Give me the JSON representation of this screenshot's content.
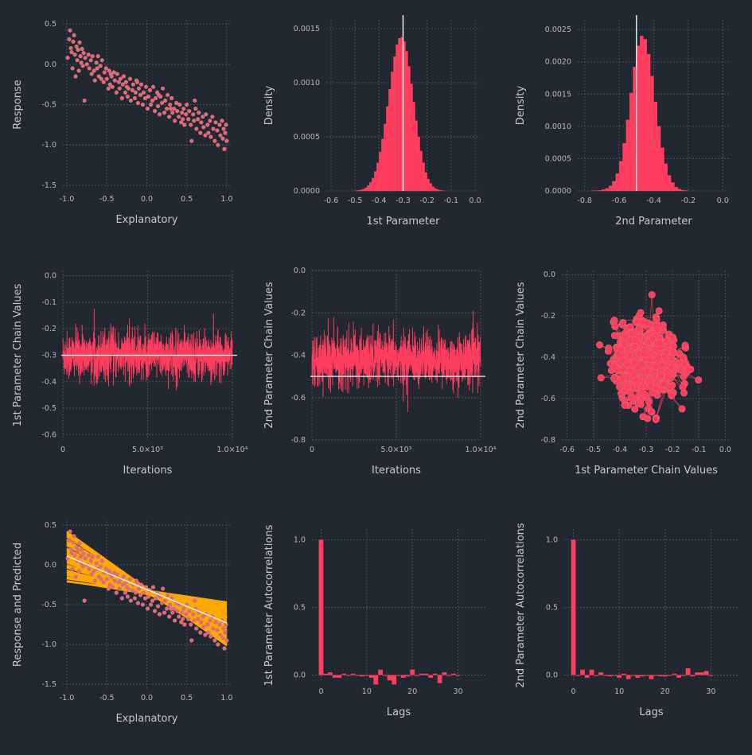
{
  "colors": {
    "background": "#222831",
    "pink": "#ff3d5f",
    "dots": "#d96d7a",
    "orange": "#ffa800",
    "white": "#f5f5f5",
    "grid": "#4a4f5a",
    "tick": "#b7b7b7",
    "label": "#c8c8c8"
  },
  "chart_data": [
    {
      "id": "p1",
      "type": "scatter",
      "xlabel": "Explanatory",
      "ylabel": "Response",
      "xlim": [
        -1.05,
        1.05
      ],
      "ylim": [
        -1.55,
        0.55
      ],
      "xticks": [
        -1.0,
        -0.5,
        0.0,
        0.5,
        1.0
      ],
      "xtick_labels": [
        "-1.0",
        "-0.5",
        "0.0",
        "0.5",
        "1.0"
      ],
      "yticks": [
        0.5,
        0.0,
        -0.5,
        -1.0,
        -1.5
      ],
      "ytick_labels": [
        "0.5",
        "0.0",
        "-0.5",
        "-1.0",
        "-1.5"
      ],
      "points": [
        [
          -0.99,
          0.08
        ],
        [
          -0.97,
          0.31
        ],
        [
          -0.96,
          0.42
        ],
        [
          -0.95,
          0.2
        ],
        [
          -0.94,
          0.15
        ],
        [
          -0.93,
          -0.05
        ],
        [
          -0.92,
          0.28
        ],
        [
          -0.91,
          0.36
        ],
        [
          -0.9,
          0.12
        ],
        [
          -0.89,
          -0.15
        ],
        [
          -0.88,
          0.22
        ],
        [
          -0.87,
          0.05
        ],
        [
          -0.86,
          0.18
        ],
        [
          -0.85,
          -0.08
        ],
        [
          -0.84,
          0.27
        ],
        [
          -0.83,
          0.1
        ],
        [
          -0.82,
          0.02
        ],
        [
          -0.81,
          0.19
        ],
        [
          -0.8,
          -0.02
        ],
        [
          -0.79,
          0.14
        ],
        [
          -0.78,
          -0.45
        ],
        [
          -0.77,
          0.08
        ],
        [
          -0.75,
          0.0
        ],
        [
          -0.73,
          0.12
        ],
        [
          -0.72,
          -0.05
        ],
        [
          -0.7,
          0.05
        ],
        [
          -0.69,
          -0.12
        ],
        [
          -0.68,
          0.1
        ],
        [
          -0.66,
          -0.08
        ],
        [
          -0.65,
          -0.2
        ],
        [
          -0.63,
          0.02
        ],
        [
          -0.61,
          0.1
        ],
        [
          -0.6,
          -0.15
        ],
        [
          -0.58,
          -0.02
        ],
        [
          -0.57,
          -0.18
        ],
        [
          -0.56,
          0.05
        ],
        [
          -0.54,
          -0.22
        ],
        [
          -0.53,
          -0.1
        ],
        [
          -0.51,
          -0.05
        ],
        [
          -0.5,
          -0.18
        ],
        [
          -0.48,
          -0.3
        ],
        [
          -0.47,
          -0.08
        ],
        [
          -0.46,
          -0.25
        ],
        [
          -0.44,
          -0.15
        ],
        [
          -0.43,
          -0.28
        ],
        [
          -0.41,
          -0.1
        ],
        [
          -0.4,
          -0.2
        ],
        [
          -0.38,
          -0.35
        ],
        [
          -0.37,
          -0.12
        ],
        [
          -0.35,
          -0.22
        ],
        [
          -0.34,
          -0.3
        ],
        [
          -0.33,
          -0.18
        ],
        [
          -0.31,
          -0.42
        ],
        [
          -0.3,
          -0.25
        ],
        [
          -0.29,
          -0.15
        ],
        [
          -0.27,
          -0.35
        ],
        [
          -0.26,
          -0.22
        ],
        [
          -0.24,
          -0.4
        ],
        [
          -0.23,
          -0.3
        ],
        [
          -0.21,
          -0.18
        ],
        [
          -0.2,
          -0.45
        ],
        [
          -0.18,
          -0.32
        ],
        [
          -0.17,
          -0.25
        ],
        [
          -0.15,
          -0.42
        ],
        [
          -0.14,
          -0.35
        ],
        [
          -0.13,
          -0.2
        ],
        [
          -0.11,
          -0.48
        ],
        [
          -0.1,
          -0.3
        ],
        [
          -0.08,
          -0.38
        ],
        [
          -0.07,
          -0.25
        ],
        [
          -0.05,
          -0.5
        ],
        [
          -0.04,
          -0.35
        ],
        [
          -0.02,
          -0.42
        ],
        [
          -0.01,
          -0.28
        ],
        [
          0.01,
          -0.55
        ],
        [
          0.02,
          -0.4
        ],
        [
          0.04,
          -0.32
        ],
        [
          0.05,
          -0.5
        ],
        [
          0.07,
          -0.45
        ],
        [
          0.08,
          -0.28
        ],
        [
          0.1,
          -0.58
        ],
        [
          0.11,
          -0.42
        ],
        [
          0.13,
          -0.35
        ],
        [
          0.14,
          -0.52
        ],
        [
          0.16,
          -0.62
        ],
        [
          0.17,
          -0.4
        ],
        [
          0.19,
          -0.48
        ],
        [
          0.2,
          -0.3
        ],
        [
          0.22,
          -0.6
        ],
        [
          0.23,
          -0.45
        ],
        [
          0.25,
          -0.55
        ],
        [
          0.26,
          -0.38
        ],
        [
          0.28,
          -0.65
        ],
        [
          0.29,
          -0.5
        ],
        [
          0.31,
          -0.42
        ],
        [
          0.32,
          -0.6
        ],
        [
          0.34,
          -0.55
        ],
        [
          0.35,
          -0.7
        ],
        [
          0.37,
          -0.48
        ],
        [
          0.38,
          -0.58
        ],
        [
          0.4,
          -0.65
        ],
        [
          0.41,
          -0.5
        ],
        [
          0.43,
          -0.72
        ],
        [
          0.44,
          -0.6
        ],
        [
          0.46,
          -0.55
        ],
        [
          0.47,
          -0.75
        ],
        [
          0.49,
          -0.62
        ],
        [
          0.5,
          -0.5
        ],
        [
          0.52,
          -0.68
        ],
        [
          0.53,
          -0.58
        ],
        [
          0.55,
          -0.75
        ],
        [
          0.56,
          -0.95
        ],
        [
          0.58,
          -0.62
        ],
        [
          0.59,
          -0.7
        ],
        [
          0.61,
          -0.55
        ],
        [
          0.62,
          -0.8
        ],
        [
          0.64,
          -0.68
        ],
        [
          0.65,
          -0.6
        ],
        [
          0.67,
          -0.85
        ],
        [
          0.68,
          -0.72
        ],
        [
          0.7,
          -0.65
        ],
        [
          0.71,
          -0.78
        ],
        [
          0.73,
          -0.88
        ],
        [
          0.74,
          -0.62
        ],
        [
          0.76,
          -0.75
        ],
        [
          0.77,
          -0.85
        ],
        [
          0.79,
          -0.7
        ],
        [
          0.8,
          -0.9
        ],
        [
          0.82,
          -0.65
        ],
        [
          0.83,
          -0.8
        ],
        [
          0.85,
          -0.95
        ],
        [
          0.86,
          -0.72
        ],
        [
          0.88,
          -0.82
        ],
        [
          0.89,
          -1.0
        ],
        [
          0.91,
          -0.75
        ],
        [
          0.92,
          -0.88
        ],
        [
          0.94,
          -0.7
        ],
        [
          0.95,
          -0.92
        ],
        [
          0.96,
          -0.8
        ],
        [
          0.97,
          -1.05
        ],
        [
          0.98,
          -0.85
        ],
        [
          0.99,
          -0.75
        ],
        [
          1.0,
          -0.95
        ],
        [
          -0.62,
          -0.05
        ],
        [
          -0.25,
          -0.28
        ],
        [
          0.15,
          -0.38
        ],
        [
          0.45,
          -0.68
        ],
        [
          -0.45,
          -0.12
        ],
        [
          0.6,
          -0.45
        ],
        [
          0.3,
          -0.55
        ],
        [
          -0.12,
          -0.22
        ]
      ]
    },
    {
      "id": "p2",
      "type": "bar",
      "xlabel": "1st Parameter",
      "ylabel": "Density",
      "xlim": [
        -0.62,
        0.02
      ],
      "ylim": [
        0,
        0.00158
      ],
      "xticks": [
        -0.6,
        -0.5,
        -0.4,
        -0.3,
        -0.2,
        -0.1,
        0.0
      ],
      "xtick_labels": [
        "-0.6",
        "-0.5",
        "-0.4",
        "-0.3",
        "-0.2",
        "-0.1",
        "0.0"
      ],
      "yticks": [
        0,
        0.0005,
        0.001,
        0.0015
      ],
      "ytick_labels": [
        "0.0000",
        "0.0005",
        "0.0010",
        "0.0015"
      ],
      "bins_start": -0.5,
      "bin_width": 0.01,
      "values": [
        2e-06,
        5e-06,
        1e-05,
        1.8e-05,
        3e-05,
        5e-05,
        8e-05,
        0.00012,
        0.00018,
        0.00026,
        0.00036,
        0.00048,
        0.00062,
        0.00078,
        0.00094,
        0.0011,
        0.00124,
        0.00135,
        0.00141,
        0.00142,
        0.00138,
        0.00129,
        0.00115,
        0.00099,
        0.00082,
        0.00065,
        0.0005,
        0.00037,
        0.00026,
        0.00017,
        0.00011,
        7e-05,
        4e-05,
        2.2e-05,
        1.2e-05,
        6e-06,
        3e-06
      ],
      "vline": -0.3
    },
    {
      "id": "p3",
      "type": "bar",
      "xlabel": "2nd Parameter",
      "ylabel": "Density",
      "xlim": [
        -0.84,
        0.04
      ],
      "ylim": [
        0,
        0.00265
      ],
      "xticks": [
        -0.8,
        -0.6,
        -0.4,
        -0.2,
        0.0
      ],
      "xtick_labels": [
        "-0.8",
        "-0.6",
        "-0.4",
        "-0.2",
        "0.0"
      ],
      "yticks": [
        0,
        0.0005,
        0.001,
        0.0015,
        0.002,
        0.0025
      ],
      "ytick_labels": [
        "0.0000",
        "0.0005",
        "0.0010",
        "0.0015",
        "0.0020",
        "0.0025"
      ],
      "bins_start": -0.76,
      "bin_width": 0.02,
      "values": [
        2e-06,
        5e-06,
        1e-05,
        2e-05,
        4e-05,
        8e-05,
        0.00015,
        0.00027,
        0.00046,
        0.00074,
        0.0011,
        0.00152,
        0.00192,
        0.00225,
        0.0024,
        0.00235,
        0.00212,
        0.00178,
        0.00138,
        0.001,
        0.00067,
        0.00042,
        0.00024,
        0.00013,
        6e-05,
        2.8e-05,
        1.2e-05,
        5e-06
      ],
      "vline": -0.5
    },
    {
      "id": "p4",
      "type": "line",
      "xlabel": "Iterations",
      "ylabel": "1st Parameter Chain Values",
      "xlim": [
        0,
        10000
      ],
      "ylim": [
        -0.62,
        0.02
      ],
      "xticks": [
        0,
        5000,
        10000
      ],
      "xtick_labels": [
        "0",
        "5.0×10³",
        "1.0×10⁴"
      ],
      "yticks": [
        0.0,
        -0.1,
        -0.2,
        -0.3,
        -0.4,
        -0.5,
        -0.6
      ],
      "ytick_labels": [
        "0.0",
        "-0.1",
        "-0.2",
        "-0.3",
        "-0.4",
        "-0.5",
        "-0.6"
      ],
      "n_iterations": 10000,
      "mean": -0.3,
      "sd": 0.045,
      "hline": -0.3
    },
    {
      "id": "p5",
      "type": "line",
      "xlabel": "Iterations",
      "ylabel": "2nd Parameter Chain Values",
      "xlim": [
        0,
        10000
      ],
      "ylim": [
        -0.8,
        0.0
      ],
      "xticks": [
        0,
        5000,
        10000
      ],
      "xtick_labels": [
        "0",
        "5.0×10³",
        "1.0×10⁴"
      ],
      "yticks": [
        0.0,
        -0.2,
        -0.4,
        -0.6,
        -0.8
      ],
      "ytick_labels": [
        "0.0",
        "-0.2",
        "-0.4",
        "-0.6",
        "-0.8"
      ],
      "n_iterations": 10000,
      "mean": -0.42,
      "sd": 0.06,
      "hline": -0.5
    },
    {
      "id": "p6",
      "type": "scatter",
      "xlabel": "1st Parameter Chain Values",
      "ylabel": "2nd Parameter Chain Values",
      "xlim": [
        -0.62,
        0.02
      ],
      "ylim": [
        -0.8,
        0.02
      ],
      "xticks": [
        -0.6,
        -0.5,
        -0.4,
        -0.3,
        -0.2,
        -0.1,
        0.0
      ],
      "xtick_labels": [
        "-0.6",
        "-0.5",
        "-0.4",
        "-0.3",
        "-0.2",
        "-0.1",
        "0.0"
      ],
      "yticks": [
        0.0,
        -0.2,
        -0.4,
        -0.6,
        -0.8
      ],
      "ytick_labels": [
        "0.0",
        "-0.2",
        "-0.4",
        "-0.6",
        "-0.8"
      ],
      "center": [
        -0.3,
        -0.42
      ],
      "spread": [
        0.06,
        0.09
      ],
      "n_points": 2500
    },
    {
      "id": "p7",
      "type": "line",
      "xlabel": "Explanatory",
      "ylabel": "Response and Predicted",
      "xlim": [
        -1.05,
        1.05
      ],
      "ylim": [
        -1.55,
        0.55
      ],
      "xticks": [
        -1.0,
        -0.5,
        0.0,
        0.5,
        1.0
      ],
      "xtick_labels": [
        "-1.0",
        "-0.5",
        "0.0",
        "0.5",
        "1.0"
      ],
      "yticks": [
        0.5,
        0.0,
        -0.5,
        -1.0,
        -1.5
      ],
      "ytick_labels": [
        "0.5",
        "0.0",
        "-0.5",
        "-1.0",
        "-1.5"
      ],
      "band_left": [
        -0.22,
        0.4
      ],
      "band_right": [
        -1.03,
        -0.48
      ],
      "fit_line": [
        [
          -1.0,
          0.11
        ],
        [
          1.0,
          -0.73
        ]
      ],
      "n_draws": 60
    },
    {
      "id": "p8",
      "type": "bar",
      "xlabel": "Lags",
      "ylabel": "1st Parameter Autocorrelations",
      "xlim": [
        -2,
        36
      ],
      "ylim": [
        -0.05,
        1.08
      ],
      "xticks": [
        0,
        10,
        20,
        30
      ],
      "xtick_labels": [
        "0",
        "10",
        "20",
        "30"
      ],
      "yticks": [
        0.0,
        0.5,
        1.0
      ],
      "ytick_labels": [
        "0.0",
        "0.5",
        "1.0"
      ],
      "lags": [
        0,
        1,
        2,
        3,
        4,
        5,
        6,
        7,
        8,
        9,
        10,
        11,
        12,
        13,
        14,
        15,
        16,
        17,
        18,
        19,
        20,
        21,
        22,
        23,
        24,
        25,
        26,
        27,
        28,
        29,
        30
      ],
      "values": [
        1.0,
        0.01,
        0.02,
        -0.02,
        -0.02,
        0.01,
        0.0,
        0.01,
        0.0,
        -0.01,
        0.0,
        -0.02,
        -0.07,
        0.04,
        0.0,
        -0.04,
        -0.07,
        0.0,
        -0.02,
        -0.01,
        0.04,
        0.0,
        0.01,
        0.01,
        -0.02,
        0.01,
        -0.06,
        0.02,
        0.0,
        0.01,
        0.0
      ]
    },
    {
      "id": "p9",
      "type": "bar",
      "xlabel": "Lags",
      "ylabel": "2nd Parameter Autocorrelations",
      "xlim": [
        -2,
        36
      ],
      "ylim": [
        -0.05,
        1.08
      ],
      "xticks": [
        0,
        10,
        20,
        30
      ],
      "xtick_labels": [
        "0",
        "10",
        "20",
        "30"
      ],
      "yticks": [
        0.0,
        0.5,
        1.0
      ],
      "ytick_labels": [
        "0.0",
        "0.5",
        "1.0"
      ],
      "lags": [
        0,
        1,
        2,
        3,
        4,
        5,
        6,
        7,
        8,
        9,
        10,
        11,
        12,
        13,
        14,
        15,
        16,
        17,
        18,
        19,
        20,
        21,
        22,
        23,
        24,
        25,
        26,
        27,
        28,
        29,
        30
      ],
      "values": [
        1.0,
        0.0,
        0.04,
        -0.02,
        0.04,
        0.0,
        0.02,
        0.0,
        -0.01,
        0.0,
        -0.02,
        0.01,
        -0.03,
        0.0,
        -0.02,
        -0.01,
        0.0,
        -0.03,
        0.0,
        -0.01,
        -0.01,
        0.0,
        0.01,
        -0.02,
        0.0,
        0.05,
        -0.01,
        0.02,
        0.02,
        0.03,
        0.0
      ]
    }
  ]
}
